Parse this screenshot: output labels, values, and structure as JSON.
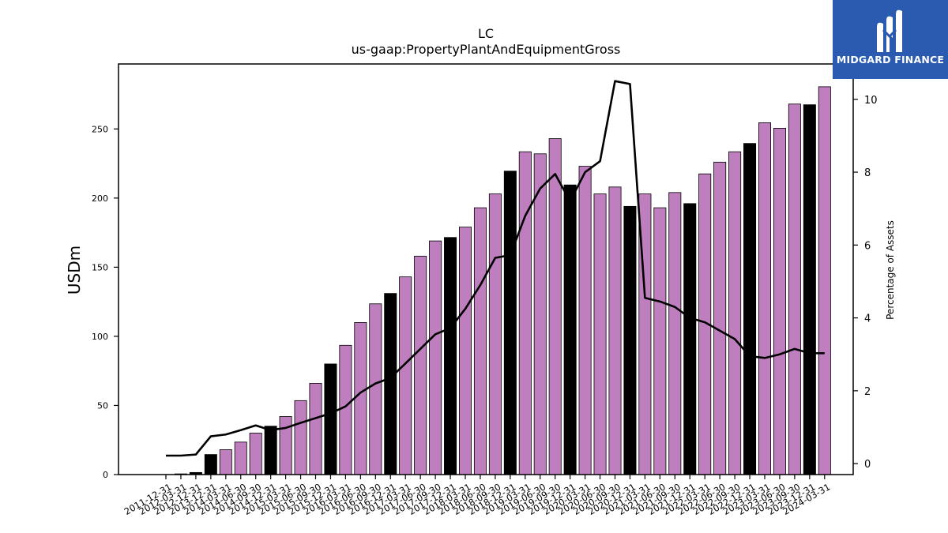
{
  "chart_data": {
    "type": "bar",
    "title": "LC",
    "subtitle": "us-gaap:PropertyPlantAndEquipmentGross",
    "ylabel": "USDm",
    "y2label": "Percentage of Assets",
    "ylim": [
      0,
      297
    ],
    "y2lim": [
      -0.3,
      10.97
    ],
    "yticks": [
      0,
      50,
      100,
      150,
      200,
      250
    ],
    "y2ticks": [
      0,
      2,
      4,
      6,
      8,
      10
    ],
    "colors": {
      "quarter_bar": "#bf7fbf",
      "year_end_bar": "#000000",
      "line": "#000000",
      "logo_bg": "#2b5bb0"
    },
    "categories": [
      "2011-12-31",
      "2012-03-31",
      "2012-12-31",
      "2013-12-31",
      "2014-03-31",
      "2014-06-30",
      "2014-09-30",
      "2014-12-31",
      "2015-03-31",
      "2015-06-30",
      "2015-09-30",
      "2015-12-31",
      "2016-03-31",
      "2016-06-30",
      "2016-09-30",
      "2016-12-31",
      "2017-03-31",
      "2017-06-30",
      "2017-09-30",
      "2017-12-31",
      "2018-03-31",
      "2018-06-30",
      "2018-09-30",
      "2018-12-31",
      "2019-03-31",
      "2019-06-30",
      "2019-09-30",
      "2019-12-31",
      "2020-03-31",
      "2020-06-30",
      "2020-09-30",
      "2020-12-31",
      "2021-03-31",
      "2021-06-30",
      "2021-09-30",
      "2021-12-31",
      "2022-03-31",
      "2022-06-30",
      "2022-09-30",
      "2022-12-31",
      "2023-03-31",
      "2023-06-30",
      "2023-09-30",
      "2023-12-31",
      "2024-03-31"
    ],
    "series": [
      {
        "kind": "bar",
        "values": [
          0,
          0.5,
          1.5,
          14.5,
          18,
          23.5,
          30,
          35,
          42,
          53.5,
          66,
          80,
          93.5,
          110,
          123.5,
          131,
          143,
          158,
          169,
          171.5,
          179,
          193,
          203,
          219.5,
          233.5,
          232,
          243,
          209.5,
          223,
          203,
          208,
          194,
          203,
          193,
          204,
          196,
          217.5,
          226,
          233.5,
          239.5,
          254.5,
          250.5,
          268,
          267.5,
          280.5
        ],
        "year_end": [
          true,
          false,
          true,
          true,
          false,
          false,
          false,
          true,
          false,
          false,
          false,
          true,
          false,
          false,
          false,
          true,
          false,
          false,
          false,
          true,
          false,
          false,
          false,
          true,
          false,
          false,
          false,
          true,
          false,
          false,
          false,
          true,
          false,
          false,
          false,
          true,
          false,
          false,
          false,
          true,
          false,
          false,
          false,
          true,
          false
        ]
      },
      {
        "kind": "line",
        "axis": "right",
        "values": [
          0.22,
          0.22,
          0.25,
          0.75,
          0.8,
          0.92,
          1.05,
          0.92,
          0.98,
          1.12,
          1.25,
          1.38,
          1.57,
          1.95,
          2.2,
          2.35,
          2.75,
          3.15,
          3.55,
          3.72,
          4.25,
          4.9,
          5.65,
          5.72,
          6.8,
          7.55,
          7.95,
          7.2,
          8.0,
          8.3,
          10.5,
          10.42,
          4.55,
          4.45,
          4.3,
          4.0,
          3.88,
          3.65,
          3.42,
          2.95,
          2.9,
          3.0,
          3.15,
          3.03,
          3.03
        ]
      }
    ]
  },
  "logo": {
    "text": "MIDGARD FINANCE"
  }
}
